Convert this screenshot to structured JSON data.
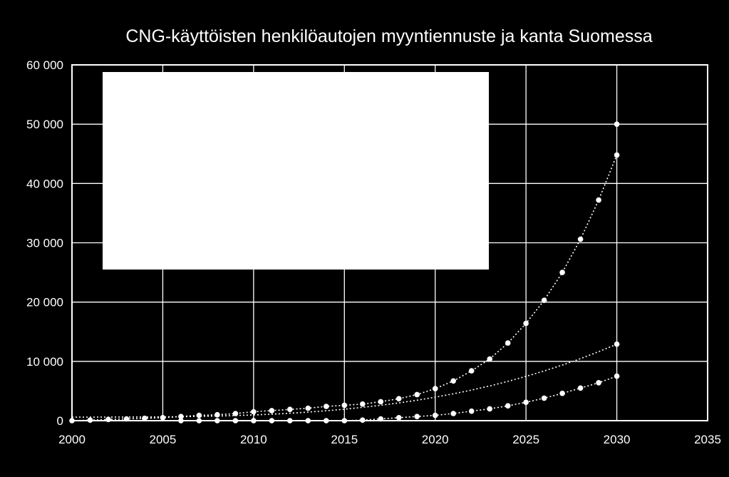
{
  "chart_data": {
    "type": "scatter",
    "title": "CNG-käyttöisten henkilöautojen myyntiennuste ja kanta Suomessa",
    "xlabel": "",
    "ylabel": "",
    "xlim": [
      2000,
      2035
    ],
    "ylim": [
      0,
      60000
    ],
    "x_ticks": [
      "2000",
      "2005",
      "2010",
      "2015",
      "2020",
      "2025",
      "2030",
      "2035"
    ],
    "y_ticks": [
      "0",
      "10 000",
      "20 000",
      "30 000",
      "40 000",
      "50 000",
      "60 000"
    ],
    "grid": true,
    "legend": "obscured by white box (top-left of plot area)",
    "colors": {
      "background": "#000000",
      "foreground": "#ffffff"
    },
    "series": [
      {
        "style": "markers + dotted trendline",
        "points": [
          [
            2000,
            0
          ],
          [
            2001,
            100
          ],
          [
            2002,
            200
          ],
          [
            2003,
            300
          ],
          [
            2004,
            400
          ],
          [
            2005,
            500
          ],
          [
            2006,
            700
          ],
          [
            2007,
            900
          ],
          [
            2008,
            1000
          ],
          [
            2009,
            1200
          ],
          [
            2010,
            1500
          ],
          [
            2011,
            1700
          ],
          [
            2012,
            1900
          ],
          [
            2013,
            2100
          ],
          [
            2014,
            2400
          ],
          [
            2015,
            2600
          ],
          [
            2016,
            2800
          ],
          [
            2017,
            3200
          ],
          [
            2018,
            3700
          ],
          [
            2019,
            4400
          ],
          [
            2020,
            5400
          ],
          [
            2021,
            6700
          ],
          [
            2022,
            8400
          ],
          [
            2023,
            10400
          ],
          [
            2024,
            13100
          ],
          [
            2025,
            16400
          ],
          [
            2026,
            20300
          ],
          [
            2027,
            25000
          ],
          [
            2028,
            30600
          ],
          [
            2029,
            37200
          ],
          [
            2030,
            44800
          ]
        ]
      },
      {
        "style": "markers + dotted trendline",
        "points": [
          [
            2006,
            0
          ],
          [
            2007,
            0
          ],
          [
            2008,
            0
          ],
          [
            2009,
            0
          ],
          [
            2010,
            0
          ],
          [
            2011,
            0
          ],
          [
            2012,
            0
          ],
          [
            2013,
            0
          ],
          [
            2014,
            0
          ],
          [
            2015,
            0
          ],
          [
            2016,
            100
          ],
          [
            2017,
            300
          ],
          [
            2018,
            500
          ],
          [
            2019,
            700
          ],
          [
            2020,
            900
          ],
          [
            2021,
            1200
          ],
          [
            2022,
            1600
          ],
          [
            2023,
            2000
          ],
          [
            2024,
            2500
          ],
          [
            2025,
            3100
          ],
          [
            2026,
            3800
          ],
          [
            2027,
            4600
          ],
          [
            2028,
            5500
          ],
          [
            2029,
            6400
          ],
          [
            2030,
            7500
          ]
        ]
      },
      {
        "style": "markers + dotted trendline",
        "points": [
          [
            2030,
            50000
          ],
          [
            2030,
            12900
          ]
        ]
      }
    ]
  }
}
